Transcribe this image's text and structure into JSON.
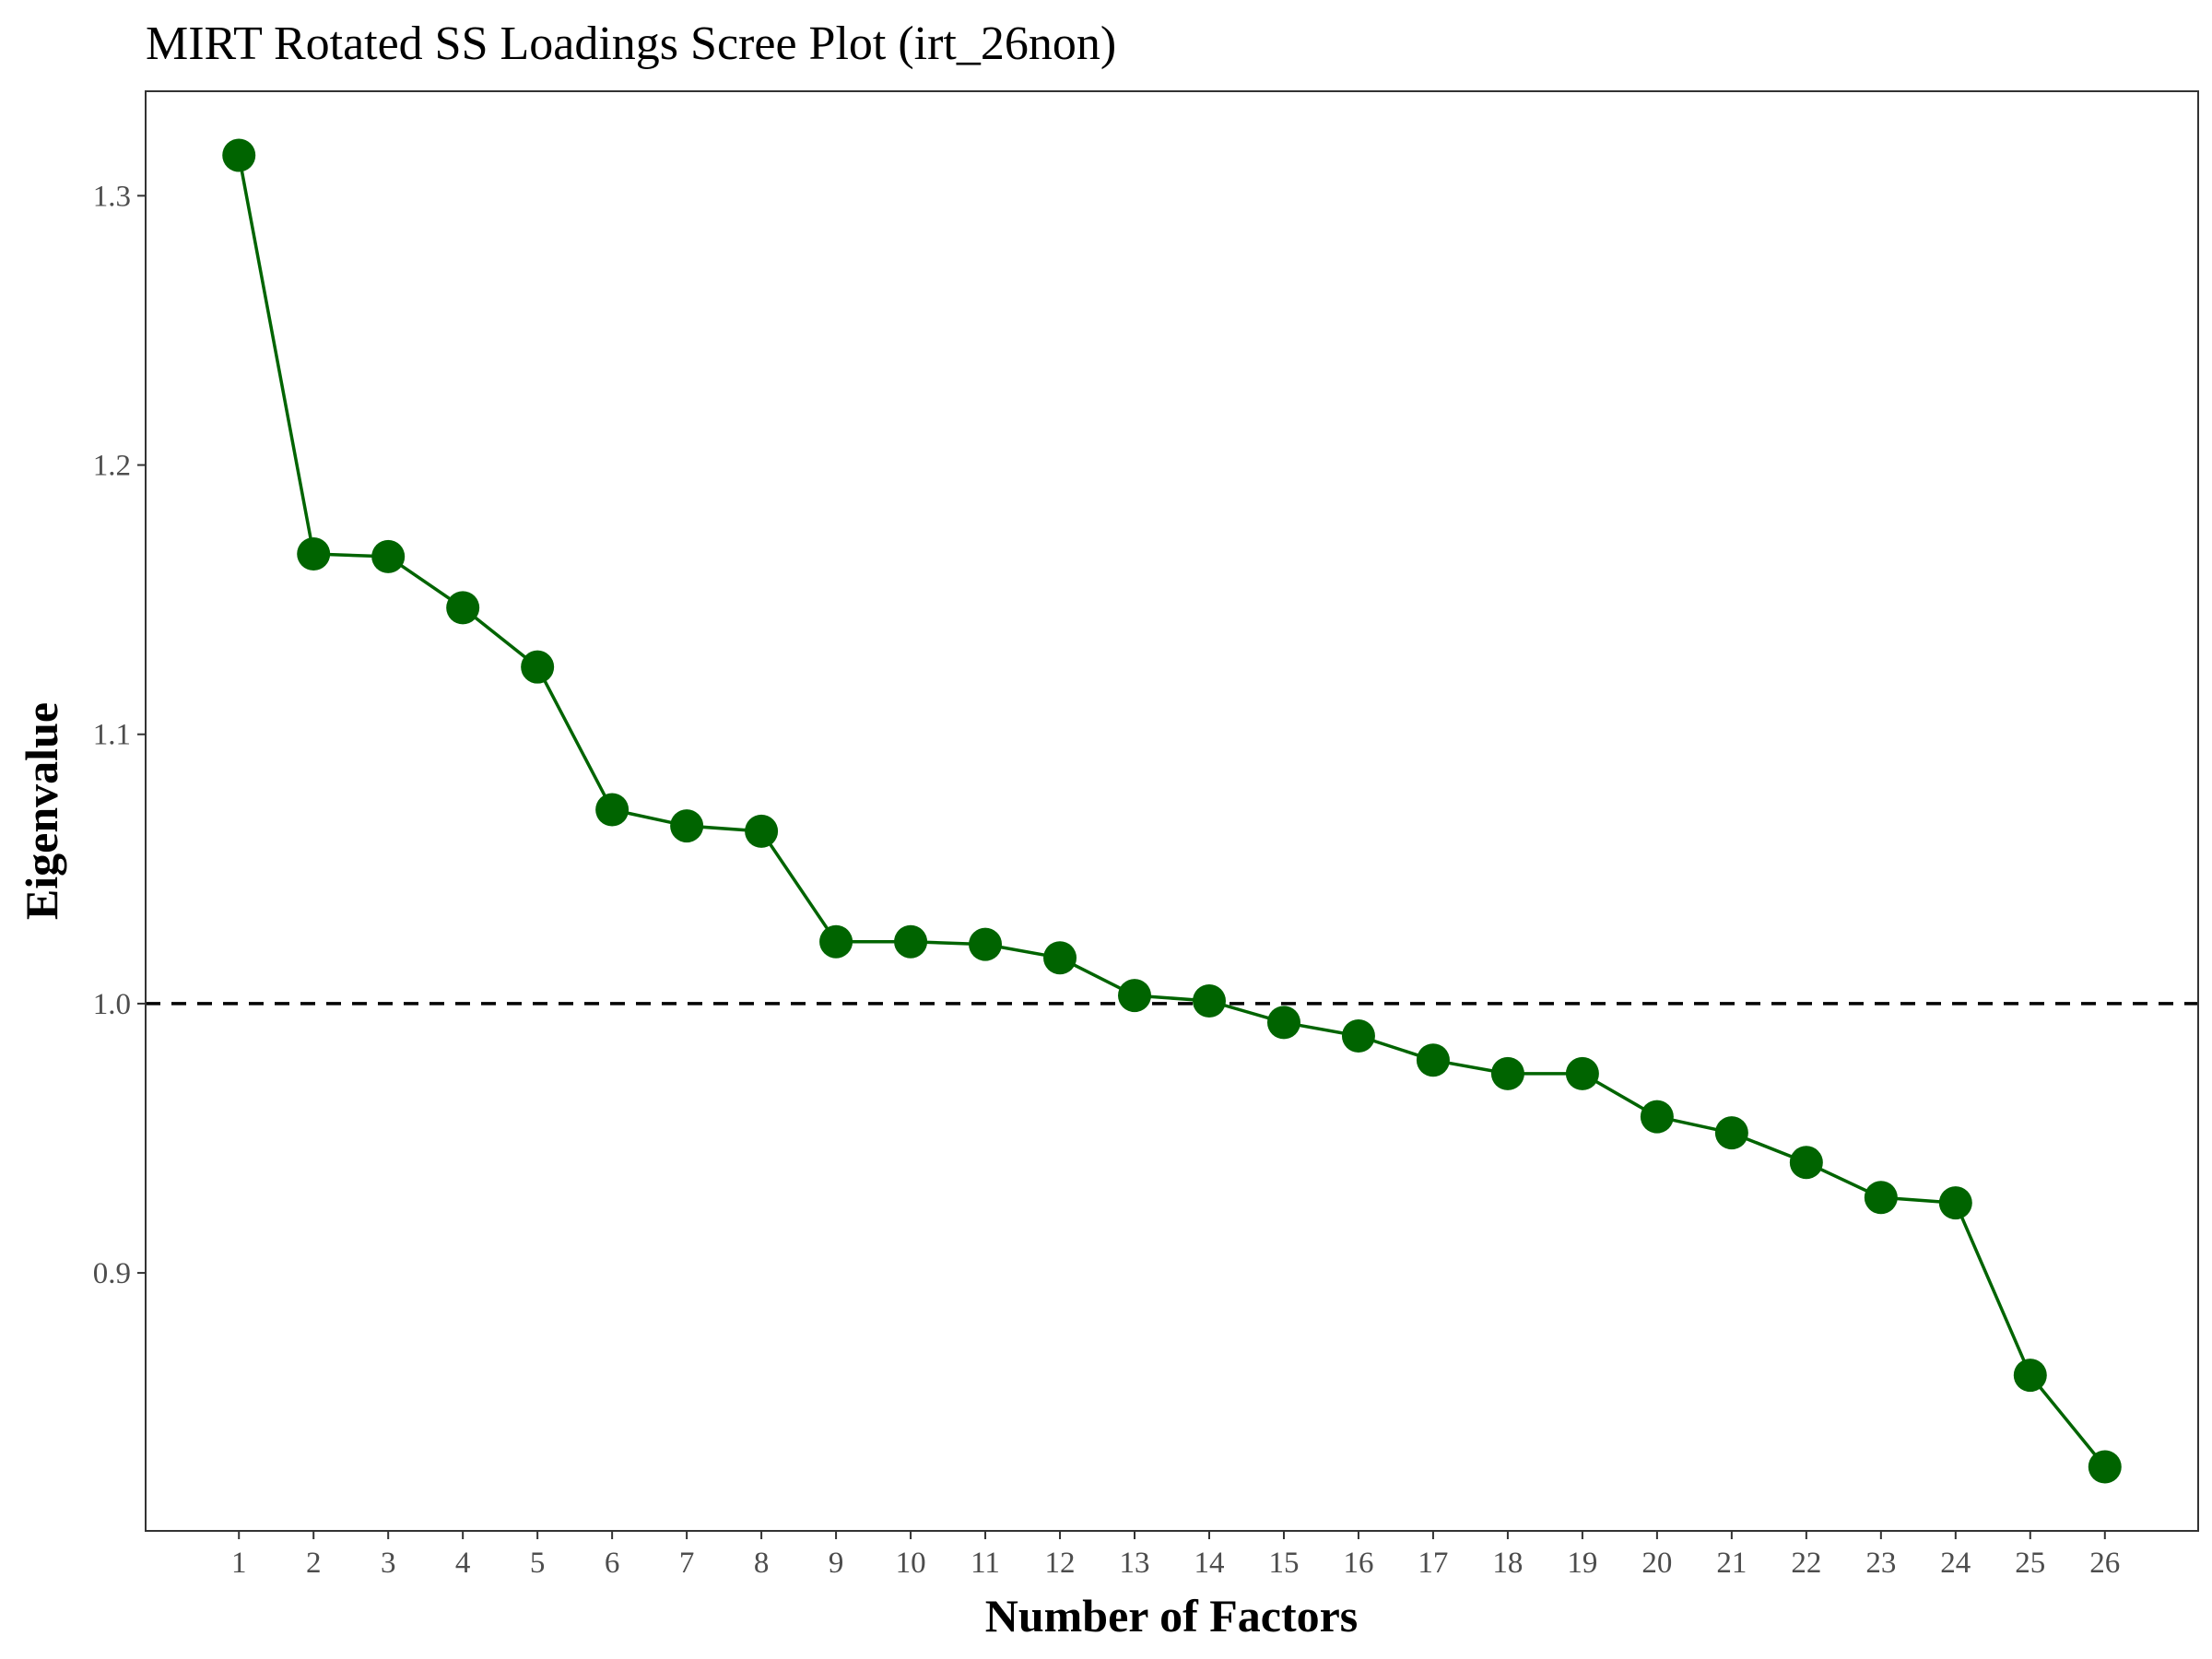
{
  "chart_data": {
    "type": "line",
    "title": "MIRT Rotated SS Loadings Scree Plot (irt_26non)",
    "xlabel": "Number of Factors",
    "ylabel": "Eigenvalue",
    "x": [
      1,
      2,
      3,
      4,
      5,
      6,
      7,
      8,
      9,
      10,
      11,
      12,
      13,
      14,
      15,
      16,
      17,
      18,
      19,
      20,
      21,
      22,
      23,
      24,
      25,
      26
    ],
    "x_tick_labels": [
      "1",
      "2",
      "3",
      "4",
      "5",
      "6",
      "7",
      "8",
      "9",
      "10",
      "11",
      "12",
      "13",
      "14",
      "15",
      "16",
      "17",
      "18",
      "19",
      "20",
      "21",
      "22",
      "23",
      "24",
      "25",
      "26"
    ],
    "y": [
      1.315,
      1.167,
      1.166,
      1.147,
      1.125,
      1.072,
      1.066,
      1.064,
      1.023,
      1.023,
      1.022,
      1.017,
      1.003,
      1.001,
      0.993,
      0.988,
      0.979,
      0.974,
      0.974,
      0.958,
      0.952,
      0.941,
      0.928,
      0.926,
      0.862,
      0.828
    ],
    "y_ticks": [
      0.9,
      1.0,
      1.1,
      1.2,
      1.3
    ],
    "y_tick_labels": [
      "0.9",
      "1.0",
      "1.1",
      "1.2",
      "1.3"
    ],
    "xlim": [
      -0.25,
      27.25
    ],
    "ylim": [
      0.8042,
      1.3388
    ],
    "reference_line": {
      "y": 1.0,
      "style": "dashed",
      "color": "#000000"
    },
    "series_color": "#006400",
    "marker": "filled-circle",
    "grid": false,
    "legend": "none"
  }
}
